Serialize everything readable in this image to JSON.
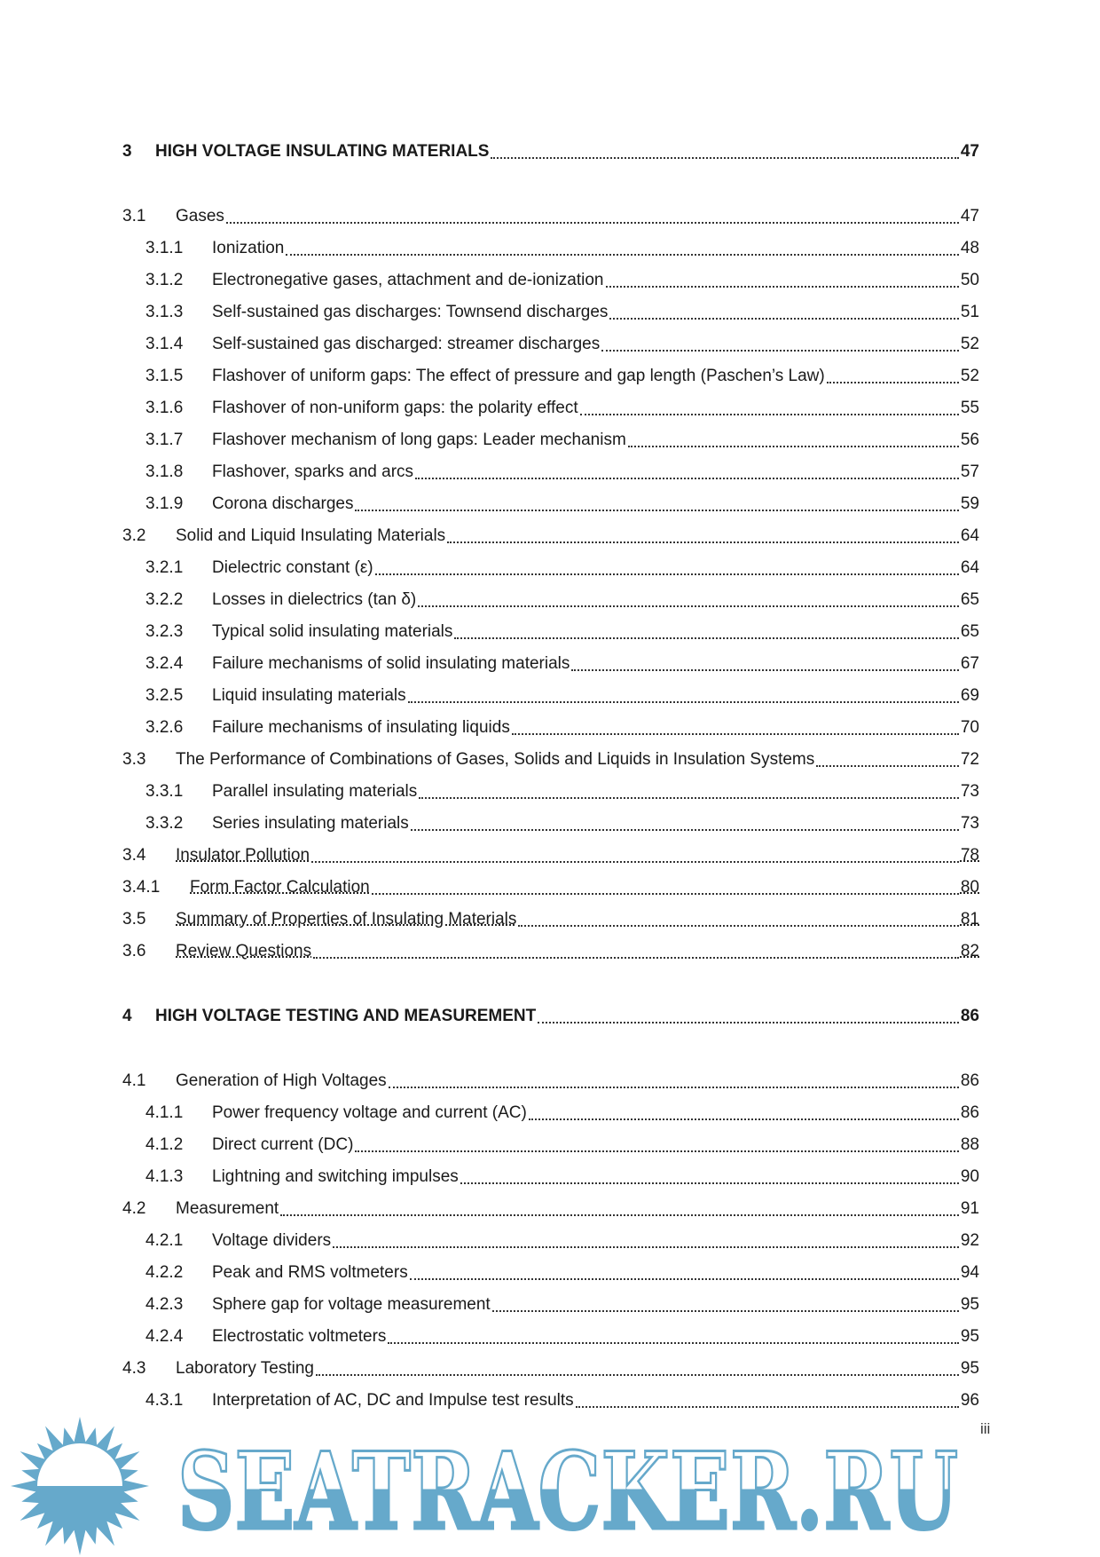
{
  "toc": [
    {
      "level": "heading",
      "num": "3",
      "title": "HIGH VOLTAGE INSULATING MATERIALS",
      "page": "47"
    },
    {
      "level": "l1",
      "num": "3.1",
      "title": "Gases",
      "page": "47",
      "gap": true
    },
    {
      "level": "l2",
      "num": "3.1.1",
      "title": "Ionization",
      "page": "48"
    },
    {
      "level": "l2",
      "num": "3.1.2",
      "title": "Electronegative gases, attachment and de-ionization",
      "page": "50"
    },
    {
      "level": "l2",
      "num": "3.1.3",
      "title": "Self-sustained gas discharges: Townsend discharges",
      "page": "51"
    },
    {
      "level": "l2",
      "num": "3.1.4",
      "title": "Self-sustained gas discharged: streamer discharges",
      "page": "52"
    },
    {
      "level": "l2",
      "num": "3.1.5",
      "title": "Flashover of uniform gaps: The effect of pressure and gap length (Paschen’s Law)",
      "page": "52"
    },
    {
      "level": "l2",
      "num": "3.1.6",
      "title": "Flashover of non-uniform gaps: the polarity effect",
      "page": "55"
    },
    {
      "level": "l2",
      "num": "3.1.7",
      "title": "Flashover mechanism of long gaps: Leader mechanism",
      "page": "56"
    },
    {
      "level": "l2",
      "num": "3.1.8",
      "title": "Flashover, sparks and arcs",
      "page": "57"
    },
    {
      "level": "l2",
      "num": "3.1.9",
      "title": "Corona discharges",
      "page": "59"
    },
    {
      "level": "l1",
      "num": "3.2",
      "title": "Solid and Liquid Insulating Materials",
      "page": "64"
    },
    {
      "level": "l2",
      "num": "3.2.1",
      "title": "Dielectric constant (ε)",
      "page": "64"
    },
    {
      "level": "l2",
      "num": "3.2.2",
      "title": "Losses in dielectrics (tan δ)",
      "page": "65"
    },
    {
      "level": "l2",
      "num": "3.2.3",
      "title": "Typical solid insulating materials",
      "page": "65"
    },
    {
      "level": "l2",
      "num": "3.2.4",
      "title": "Failure mechanisms of solid insulating materials",
      "page": "67"
    },
    {
      "level": "l2",
      "num": "3.2.5",
      "title": "Liquid insulating materials",
      "page": "69"
    },
    {
      "level": "l2",
      "num": "3.2.6",
      "title": "Failure mechanisms of insulating liquids",
      "page": "70"
    },
    {
      "level": "l1",
      "num": "3.3",
      "title": "The Performance of Combinations of Gases, Solids and Liquids in Insulation Systems",
      "page": "72"
    },
    {
      "level": "l2",
      "num": "3.3.1",
      "title": "Parallel insulating materials",
      "page": "73"
    },
    {
      "level": "l2",
      "num": "3.3.2",
      "title": "Series insulating materials",
      "page": "73"
    },
    {
      "level": "l1",
      "num": "3.4",
      "title": "Insulator Pollution",
      "page": "78",
      "link": true
    },
    {
      "level": "l3",
      "num": "3.4.1",
      "title": "Form Factor Calculation",
      "page": "80",
      "link": true
    },
    {
      "level": "l1",
      "num": "3.5",
      "title": "Summary of Properties of Insulating Materials",
      "page": "81",
      "link": true
    },
    {
      "level": "l1",
      "num": "3.6",
      "title": "Review Questions",
      "page": "82",
      "link": true
    },
    {
      "level": "heading",
      "num": "4",
      "title": "HIGH VOLTAGE TESTING AND MEASUREMENT",
      "page": "86",
      "gap": true
    },
    {
      "level": "l1",
      "num": "4.1",
      "title": "Generation of High Voltages",
      "page": "86",
      "gap": true
    },
    {
      "level": "l2",
      "num": "4.1.1",
      "title": "Power frequency voltage and current (AC)",
      "page": "86"
    },
    {
      "level": "l2",
      "num": "4.1.2",
      "title": "Direct current (DC)",
      "page": "88"
    },
    {
      "level": "l2",
      "num": "4.1.3",
      "title": "Lightning and switching impulses",
      "page": "90"
    },
    {
      "level": "l1",
      "num": "4.2",
      "title": "Measurement",
      "page": "91"
    },
    {
      "level": "l2",
      "num": "4.2.1",
      "title": "Voltage dividers",
      "page": "92"
    },
    {
      "level": "l2",
      "num": "4.2.2",
      "title": "Peak and RMS voltmeters",
      "page": "94"
    },
    {
      "level": "l2",
      "num": "4.2.3",
      "title": "Sphere gap for voltage measurement",
      "page": "95"
    },
    {
      "level": "l2",
      "num": "4.2.4",
      "title": "Electrostatic voltmeters",
      "page": "95"
    },
    {
      "level": "l1",
      "num": "4.3",
      "title": "Laboratory Testing",
      "page": "95"
    },
    {
      "level": "l2",
      "num": "4.3.1",
      "title": "Interpretation of AC, DC and Impulse test results",
      "page": "96"
    }
  ],
  "folio": "iii",
  "watermark": {
    "text": "SEATRACKER.RU",
    "color": "#66a9cb"
  }
}
